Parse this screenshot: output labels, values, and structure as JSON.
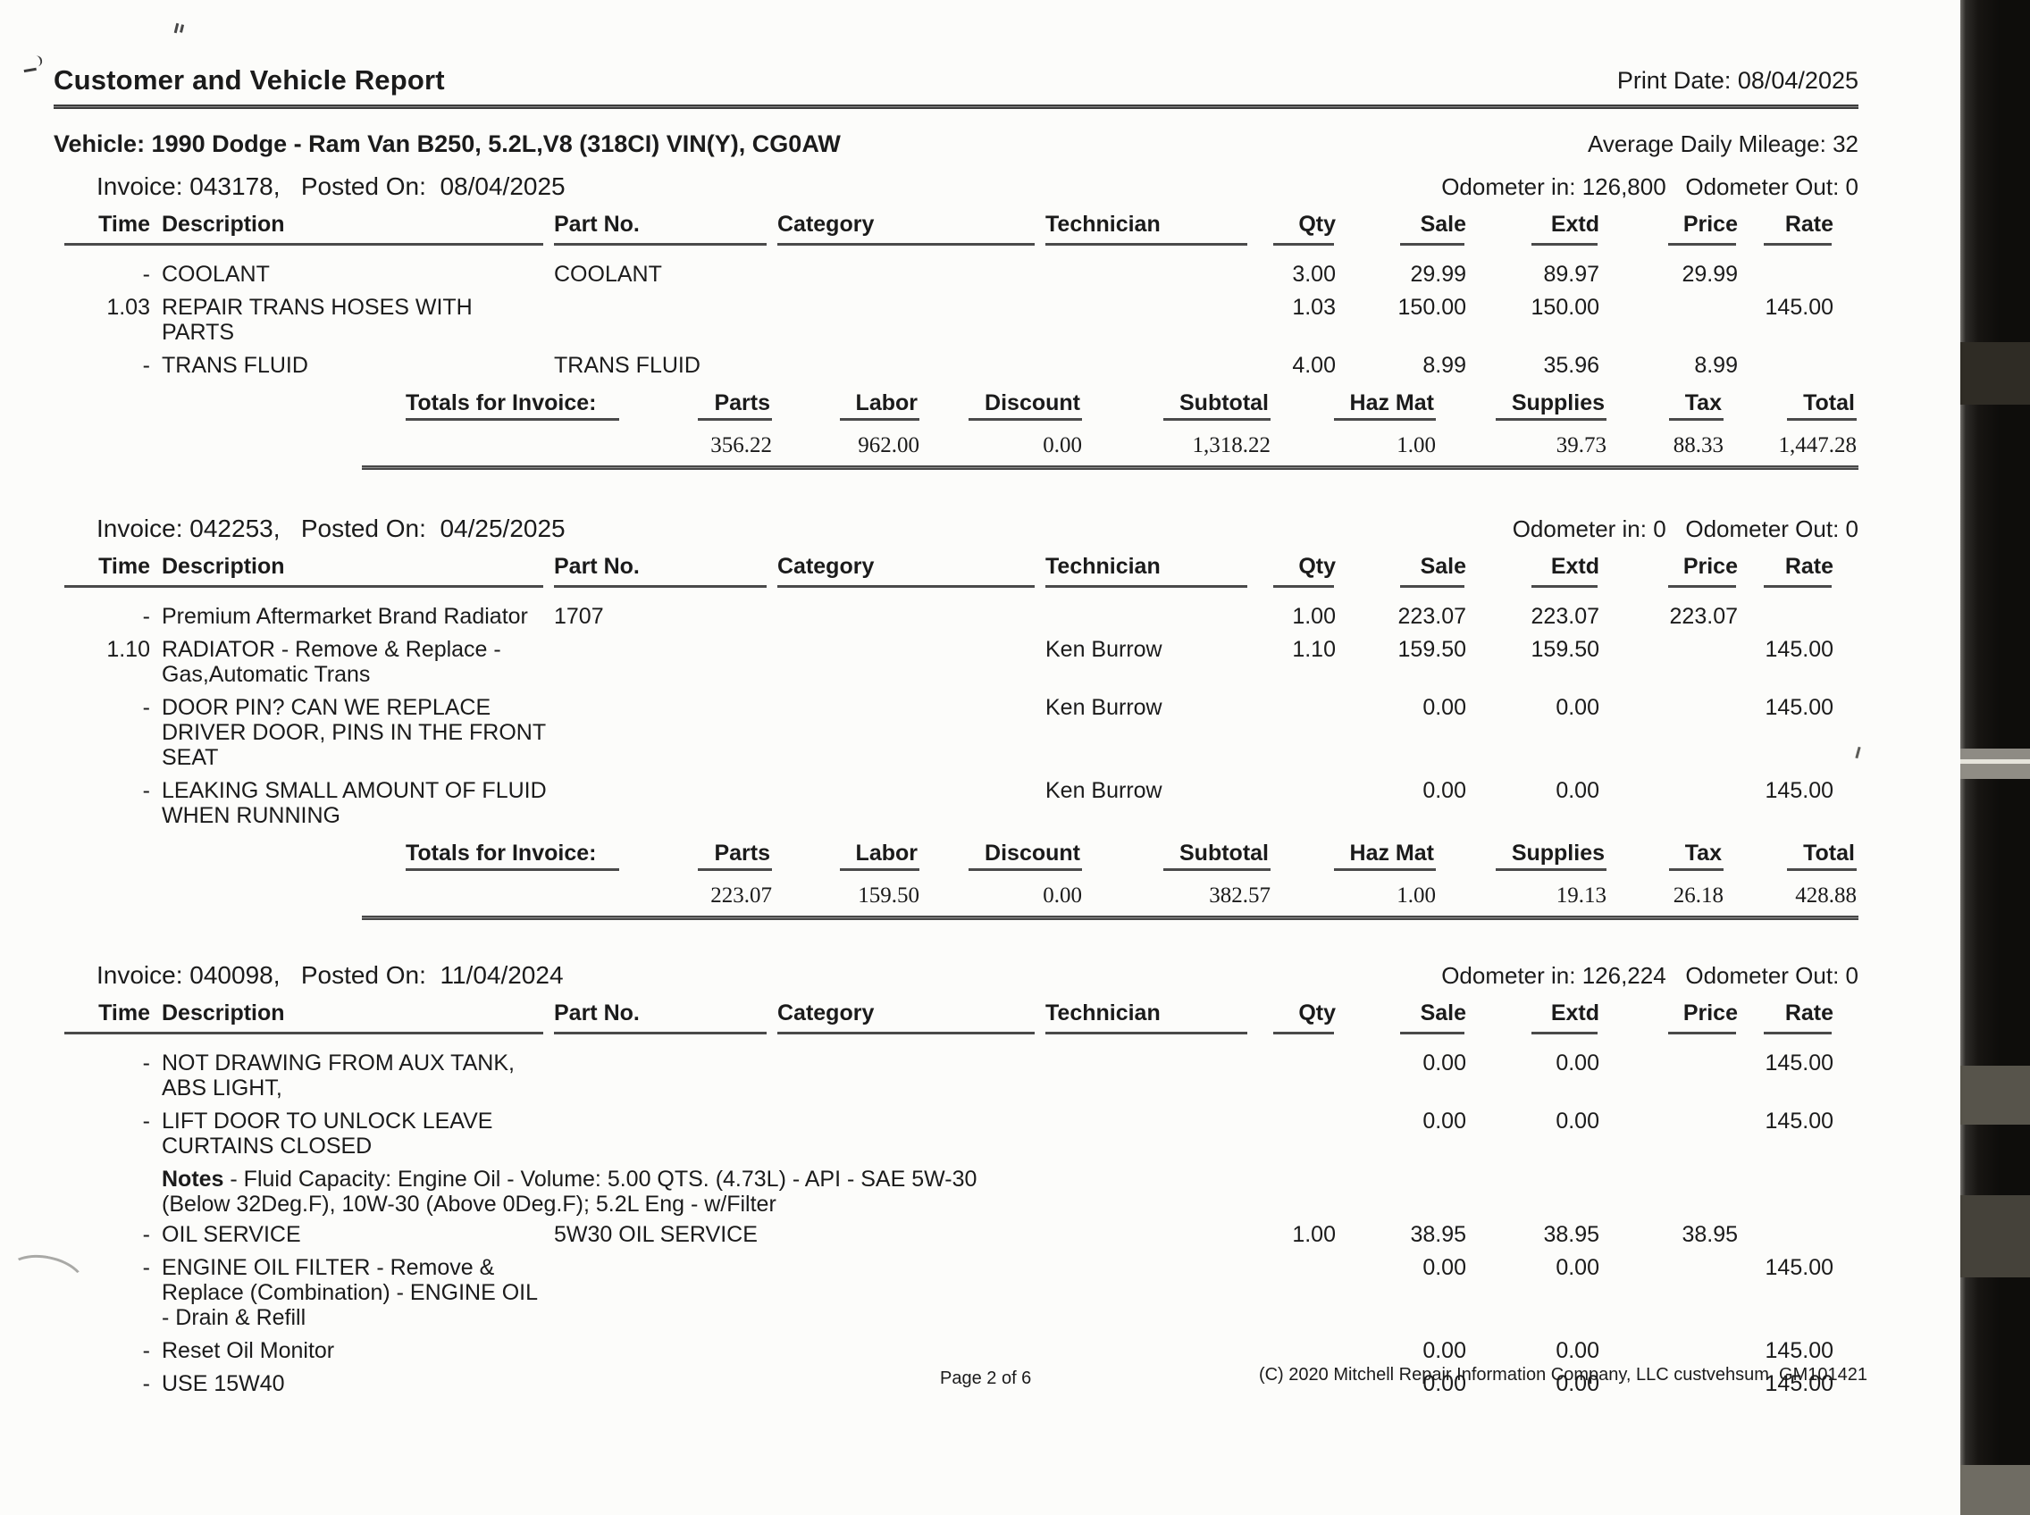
{
  "header": {
    "title": "Customer and Vehicle Report",
    "print_date": "Print Date: 08/04/2025"
  },
  "vehicle": {
    "line": "Vehicle: 1990 Dodge - Ram Van B250, 5.2L,V8 (318CI) VIN(Y), CG0AW",
    "average_daily_mileage": "Average Daily Mileage: 32"
  },
  "columns": {
    "time": "Time",
    "description": "Description",
    "part_no": "Part No.",
    "category": "Category",
    "technician": "Technician",
    "qty": "Qty",
    "sale": "Sale",
    "extd": "Extd",
    "price": "Price",
    "rate": "Rate"
  },
  "totals_columns": {
    "label": "Totals for Invoice:",
    "parts": "Parts",
    "labor": "Labor",
    "discount": "Discount",
    "subtotal": "Subtotal",
    "haz_mat": "Haz Mat",
    "supplies": "Supplies",
    "tax": "Tax",
    "total": "Total"
  },
  "invoices": [
    {
      "invoice_line": "Invoice: 043178,   Posted On:  08/04/2025",
      "odometer_line": "Odometer in: 126,800   Odometer Out: 0",
      "rows": [
        {
          "time": "-",
          "description": "COOLANT",
          "part_no": "COOLANT",
          "qty": "3.00",
          "sale": "29.99",
          "extd": "89.97",
          "price": "29.99"
        },
        {
          "time": "1.03",
          "description": "REPAIR TRANS HOSES WITH\nPARTS",
          "qty": "1.03",
          "sale": "150.00",
          "extd": "150.00",
          "rate": "145.00"
        },
        {
          "time": "-",
          "description": "TRANS FLUID",
          "part_no": "TRANS FLUID",
          "qty": "4.00",
          "sale": "8.99",
          "extd": "35.96",
          "price": "8.99"
        }
      ],
      "totals": {
        "parts": "356.22",
        "labor": "962.00",
        "discount": "0.00",
        "subtotal": "1,318.22",
        "haz_mat": "1.00",
        "supplies": "39.73",
        "tax": "88.33",
        "total": "1,447.28"
      }
    },
    {
      "invoice_line": "Invoice: 042253,   Posted On:  04/25/2025",
      "odometer_line": "Odometer in: 0   Odometer Out: 0",
      "rows": [
        {
          "time": "-",
          "description": "Premium Aftermarket Brand Radiator",
          "part_no": "1707",
          "qty": "1.00",
          "sale": "223.07",
          "extd": "223.07",
          "price": "223.07"
        },
        {
          "time": "1.10",
          "description": "RADIATOR - Remove & Replace -\nGas,Automatic Trans",
          "technician": "Ken Burrow",
          "qty": "1.10",
          "sale": "159.50",
          "extd": "159.50",
          "rate": "145.00"
        },
        {
          "time": "-",
          "description": "DOOR PIN? CAN WE REPLACE\nDRIVER DOOR, PINS IN THE FRONT\nSEAT",
          "technician": "Ken Burrow",
          "sale": "0.00",
          "extd": "0.00",
          "rate": "145.00"
        },
        {
          "time": "-",
          "description": "LEAKING SMALL AMOUNT OF FLUID\nWHEN RUNNING",
          "technician": "Ken Burrow",
          "sale": "0.00",
          "extd": "0.00",
          "rate": "145.00"
        }
      ],
      "totals": {
        "parts": "223.07",
        "labor": "159.50",
        "discount": "0.00",
        "subtotal": "382.57",
        "haz_mat": "1.00",
        "supplies": "19.13",
        "tax": "26.18",
        "total": "428.88"
      }
    },
    {
      "invoice_line": "Invoice: 040098,   Posted On:  11/04/2024",
      "odometer_line": "Odometer in: 126,224   Odometer Out: 0",
      "notes_label": "Notes",
      "notes_text": " - Fluid Capacity: Engine Oil - Volume: 5.00 QTS. (4.73L) - API - SAE 5W-30\n(Below 32Deg.F), 10W-30 (Above 0Deg.F); 5.2L Eng - w/Filter",
      "rows": [
        {
          "time": "-",
          "description": "NOT DRAWING FROM AUX TANK,\nABS LIGHT,",
          "sale": "0.00",
          "extd": "0.00",
          "rate": "145.00"
        },
        {
          "time": "-",
          "description": "LIFT DOOR TO UNLOCK LEAVE\nCURTAINS CLOSED",
          "sale": "0.00",
          "extd": "0.00",
          "rate": "145.00"
        },
        {
          "time": "-",
          "description": "OIL SERVICE",
          "part_no": "5W30 OIL SERVICE",
          "qty": "1.00",
          "sale": "38.95",
          "extd": "38.95",
          "price": "38.95"
        },
        {
          "time": "-",
          "description": "ENGINE OIL FILTER - Remove &\nReplace (Combination) - ENGINE OIL\n- Drain & Refill",
          "sale": "0.00",
          "extd": "0.00",
          "rate": "145.00"
        },
        {
          "time": "-",
          "description": "Reset Oil Monitor",
          "sale": "0.00",
          "extd": "0.00",
          "rate": "145.00"
        },
        {
          "time": "-",
          "description": "USE 15W40",
          "sale": "0.00",
          "extd": "0.00",
          "rate": "145.00"
        }
      ]
    }
  ],
  "footer": {
    "page": "Page 2 of 6",
    "copyright": "(C) 2020 Mitchell Repair Information Company, LLC custvehsum  GM101421"
  },
  "colors": {
    "paper": "#fcfcfa",
    "ink": "#1b1b1b",
    "rule": "#4a4a4a",
    "scan_strip": "#0e0d0b"
  }
}
